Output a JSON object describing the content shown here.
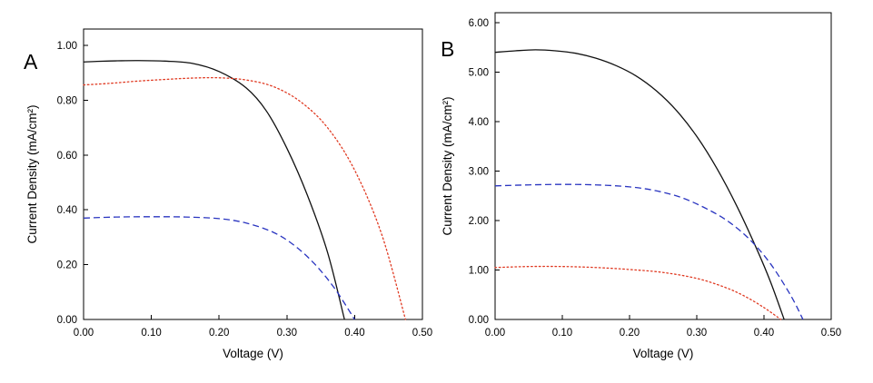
{
  "figure": {
    "background": "#ffffff",
    "axis_color": "#000000",
    "text_color": "#000000"
  },
  "chart_data": [
    {
      "type": "line",
      "panel_label": "A",
      "title": "",
      "xlabel": "Voltage (V)",
      "ylabel": "Current Density (mA/cm²)",
      "xlim": [
        0.0,
        0.5
      ],
      "ylim": [
        0.0,
        1.06
      ],
      "xticks": [
        0.0,
        0.1,
        0.2,
        0.3,
        0.4,
        0.5
      ],
      "xtick_labels": [
        "0.00",
        "0.10",
        "0.20",
        "0.30",
        "0.40",
        "0.50"
      ],
      "yticks": [
        0.0,
        0.2,
        0.4,
        0.6,
        0.8,
        1.0
      ],
      "ytick_labels": [
        "0.00",
        "0.20",
        "0.40",
        "0.60",
        "0.80",
        "1.00"
      ],
      "grid": false,
      "legend": "none",
      "series": [
        {
          "name": "black-solid-curve",
          "color": "#111111",
          "line_style": "solid",
          "x": [
            0.0,
            0.02,
            0.05,
            0.08,
            0.12,
            0.16,
            0.2,
            0.24,
            0.27,
            0.3,
            0.33,
            0.36,
            0.385
          ],
          "y": [
            0.94,
            0.942,
            0.944,
            0.945,
            0.943,
            0.935,
            0.905,
            0.845,
            0.76,
            0.625,
            0.455,
            0.245,
            0.0
          ]
        },
        {
          "name": "red-dotted-curve",
          "color": "#e03a22",
          "line_style": "dotted",
          "x": [
            0.0,
            0.04,
            0.08,
            0.12,
            0.16,
            0.2,
            0.24,
            0.28,
            0.32,
            0.36,
            0.4,
            0.44,
            0.475
          ],
          "y": [
            0.856,
            0.862,
            0.87,
            0.876,
            0.881,
            0.882,
            0.874,
            0.85,
            0.795,
            0.7,
            0.545,
            0.31,
            0.0
          ]
        },
        {
          "name": "blue-dashed-curve",
          "color": "#2a35c0",
          "line_style": "dashed",
          "x": [
            0.0,
            0.05,
            0.1,
            0.15,
            0.2,
            0.24,
            0.28,
            0.31,
            0.34,
            0.37,
            0.4
          ],
          "y": [
            0.37,
            0.374,
            0.375,
            0.374,
            0.368,
            0.352,
            0.318,
            0.272,
            0.205,
            0.115,
            0.0
          ]
        }
      ]
    },
    {
      "type": "line",
      "panel_label": "B",
      "title": "",
      "xlabel": "Voltage (V)",
      "ylabel": "Current Density (mA/cm²)",
      "xlim": [
        0.0,
        0.5
      ],
      "ylim": [
        0.0,
        6.2
      ],
      "xticks": [
        0.0,
        0.1,
        0.2,
        0.3,
        0.4,
        0.5
      ],
      "xtick_labels": [
        "0.00",
        "0.10",
        "0.20",
        "0.30",
        "0.40",
        "0.50"
      ],
      "yticks": [
        0.0,
        1.0,
        2.0,
        3.0,
        4.0,
        5.0,
        6.0
      ],
      "ytick_labels": [
        "0.00",
        "1.00",
        "2.00",
        "3.00",
        "4.00",
        "5.00",
        "6.00"
      ],
      "grid": false,
      "legend": "none",
      "series": [
        {
          "name": "black-solid-curve",
          "color": "#111111",
          "line_style": "solid",
          "x": [
            0.0,
            0.03,
            0.06,
            0.09,
            0.12,
            0.15,
            0.18,
            0.21,
            0.24,
            0.27,
            0.3,
            0.33,
            0.36,
            0.39,
            0.41,
            0.43
          ],
          "y": [
            5.4,
            5.43,
            5.45,
            5.43,
            5.38,
            5.28,
            5.13,
            4.92,
            4.62,
            4.22,
            3.7,
            3.05,
            2.28,
            1.4,
            0.75,
            0.0
          ]
        },
        {
          "name": "blue-dashed-curve",
          "color": "#2a35c0",
          "line_style": "dashed",
          "x": [
            0.0,
            0.05,
            0.1,
            0.15,
            0.2,
            0.24,
            0.28,
            0.32,
            0.35,
            0.38,
            0.41,
            0.44,
            0.458
          ],
          "y": [
            2.7,
            2.72,
            2.73,
            2.72,
            2.68,
            2.6,
            2.45,
            2.2,
            1.95,
            1.6,
            1.12,
            0.48,
            0.0
          ]
        },
        {
          "name": "red-dotted-curve",
          "color": "#e03a22",
          "line_style": "dotted",
          "x": [
            0.0,
            0.05,
            0.1,
            0.15,
            0.2,
            0.25,
            0.3,
            0.34,
            0.37,
            0.4,
            0.425
          ],
          "y": [
            1.05,
            1.07,
            1.07,
            1.05,
            1.01,
            0.95,
            0.83,
            0.66,
            0.48,
            0.24,
            0.0
          ]
        }
      ]
    }
  ]
}
